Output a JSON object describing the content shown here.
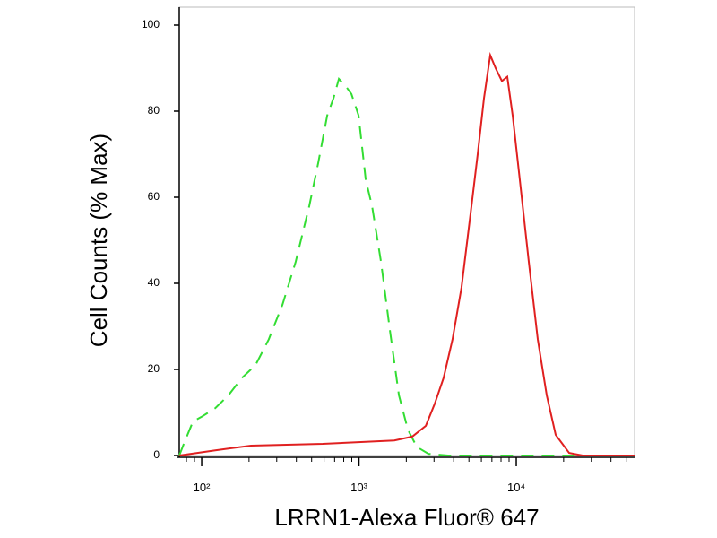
{
  "chart_data": {
    "type": "line",
    "xlabel": "LRRN1-Alexa Fluor® 647",
    "ylabel": "Cell Counts (% Max)",
    "xscale": "log",
    "xlim": [
      72,
      56500
    ],
    "ylim": [
      0,
      100
    ],
    "xticks": [
      {
        "value": 100,
        "label": "10²"
      },
      {
        "value": 1000,
        "label": "10³"
      },
      {
        "value": 10000,
        "label": "10⁴"
      }
    ],
    "xminorticks": [
      80,
      90,
      200,
      300,
      400,
      500,
      600,
      700,
      800,
      900,
      2000,
      3000,
      4000,
      5000,
      6000,
      7000,
      8000,
      9000,
      20000,
      30000,
      40000,
      50000
    ],
    "yticks": [
      0,
      20,
      40,
      60,
      80,
      100
    ],
    "series": [
      {
        "color": "#33dd33",
        "dash": true,
        "x": [
          72,
          77,
          88,
          100,
          122,
          148,
          180,
          220,
          267,
          326,
          396,
          483,
          551,
          628,
          689,
          745,
          817,
          895,
          994,
          1104,
          1210,
          1380,
          1574,
          1794,
          2046,
          2333,
          2768,
          3690,
          56500
        ],
        "values": [
          0,
          2.7,
          7.9,
          9,
          11,
          14,
          18,
          21,
          27,
          35,
          45,
          58,
          68,
          79,
          83,
          87.5,
          86,
          84,
          79,
          64,
          58,
          45,
          29,
          14,
          6,
          2,
          0.4,
          0,
          0
        ]
      },
      {
        "color": "#e02020",
        "dash": false,
        "x": [
          72,
          122,
          206,
          347,
          588,
          994,
          1679,
          2183,
          2661,
          3030,
          3450,
          3935,
          4486,
          5115,
          5684,
          6233,
          6833,
          7391,
          8106,
          8772,
          9484,
          10540,
          12020,
          13700,
          15620,
          17810,
          21680,
          26420,
          56500
        ],
        "values": [
          0,
          1.2,
          2.3,
          2.5,
          2.7,
          3.1,
          3.5,
          4.4,
          6.9,
          12,
          18,
          27,
          39,
          56,
          70,
          83,
          93,
          90,
          87,
          88,
          79,
          64,
          45,
          27,
          14,
          4.8,
          0.6,
          0,
          0
        ]
      }
    ]
  }
}
